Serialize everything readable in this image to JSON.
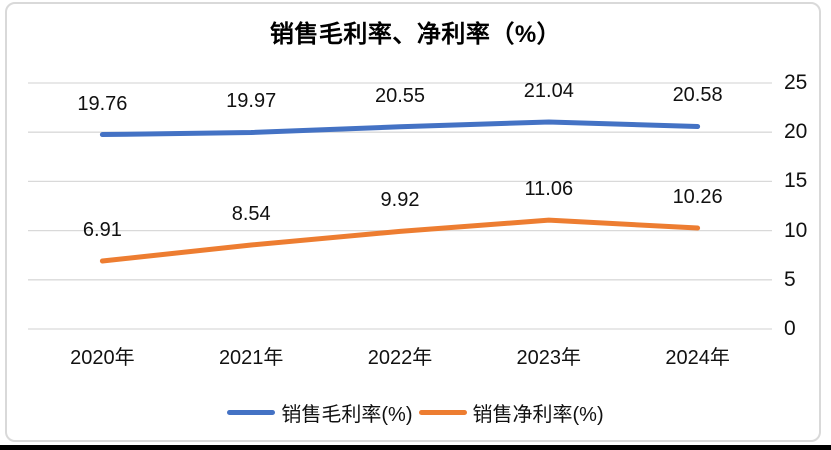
{
  "chart_data": {
    "type": "line",
    "title": "销售毛利率、净利率（%）",
    "categories": [
      "2020年",
      "2021年",
      "2022年",
      "2023年",
      "2024年"
    ],
    "series": [
      {
        "name": "销售毛利率(%)",
        "values": [
          19.76,
          19.97,
          20.55,
          21.04,
          20.58
        ],
        "labels": [
          "19.76",
          "19.97",
          "20.55",
          "21.04",
          "20.58"
        ],
        "color": "#4472C4"
      },
      {
        "name": "销售净利率(%)",
        "values": [
          6.91,
          8.54,
          9.92,
          11.06,
          10.26
        ],
        "labels": [
          "6.91",
          "8.54",
          "9.92",
          "11.06",
          "10.26"
        ],
        "color": "#ED7D31"
      }
    ],
    "y_axis": {
      "min": 0,
      "max": 25,
      "step": 5,
      "ticks": [
        "0",
        "5",
        "10",
        "15",
        "20",
        "25"
      ],
      "side": "right"
    },
    "grid": true,
    "legend_position": "bottom",
    "data_labels": true,
    "colors": {
      "gridline": "#D9D9D9",
      "frame_border": "#D9D9D9",
      "bottom_bar": "#000000",
      "text": "#111111",
      "title": "#000000"
    }
  }
}
